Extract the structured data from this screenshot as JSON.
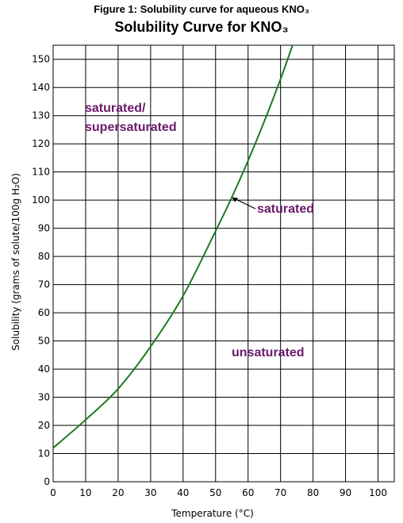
{
  "figure_caption": "Figure 1: Solubility curve for aqueous KNO₃",
  "chart_data": {
    "type": "line",
    "title": "Solubility Curve for KNO₃",
    "xlabel": "Temperature (°C)",
    "ylabel": "Solubility (grams of solute/100g H₂O)",
    "xlim": [
      0,
      105
    ],
    "ylim": [
      0,
      155
    ],
    "x_ticks": [
      0,
      10,
      20,
      30,
      40,
      50,
      60,
      70,
      80,
      90,
      100
    ],
    "y_ticks": [
      0,
      10,
      20,
      30,
      40,
      50,
      60,
      70,
      80,
      90,
      100,
      110,
      120,
      130,
      140,
      150
    ],
    "grid": true,
    "line_color": "#1f7a1f",
    "series": [
      {
        "x": [
          0,
          10,
          20,
          30,
          40,
          50,
          55,
          60,
          65,
          70,
          74
        ],
        "values": [
          12,
          22,
          33,
          48,
          66,
          89,
          101,
          114,
          128,
          143,
          156
        ]
      }
    ],
    "annotations": [
      {
        "text": "saturated/",
        "color": "#6a1a6a"
      },
      {
        "text": "supersaturated",
        "color": "#6a1a6a"
      },
      {
        "text": "saturated",
        "color": "#6a1a6a",
        "arrow_to": {
          "x": 55,
          "y": 101
        }
      },
      {
        "text": "unsaturated",
        "color": "#6a1a6a"
      }
    ]
  }
}
